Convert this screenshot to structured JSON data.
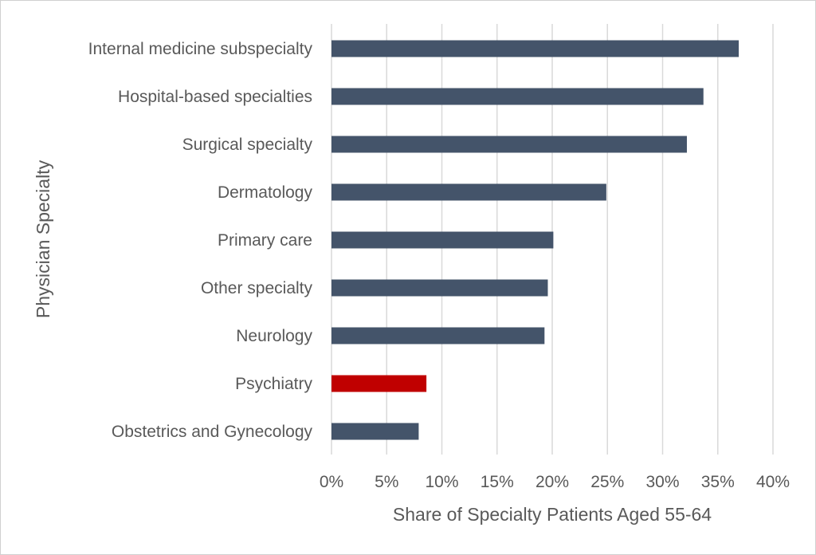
{
  "chart_data": {
    "type": "bar",
    "orientation": "horizontal",
    "title": "",
    "xlabel": "Share of Specialty Patients Aged 55-64",
    "ylabel": "Physician Specialty",
    "categories": [
      "Internal medicine subspecialty",
      "Hospital-based specialties",
      "Surgical specialty",
      "Dermatology",
      "Primary care",
      "Other specialty",
      "Neurology",
      "Psychiatry",
      "Obstetrics and Gynecology"
    ],
    "values": [
      0.369,
      0.337,
      0.322,
      0.249,
      0.201,
      0.196,
      0.193,
      0.086,
      0.079
    ],
    "xlim": [
      0,
      0.4
    ],
    "xticks": [
      0,
      0.05,
      0.1,
      0.15,
      0.2,
      0.25,
      0.3,
      0.35,
      0.4
    ],
    "xtick_labels": [
      "0%",
      "5%",
      "10%",
      "15%",
      "20%",
      "25%",
      "30%",
      "35%",
      "40%"
    ],
    "grid": "vertical",
    "colors": {
      "default": "#44546a",
      "highlight": "#c00000"
    },
    "highlight_category": "Psychiatry"
  }
}
